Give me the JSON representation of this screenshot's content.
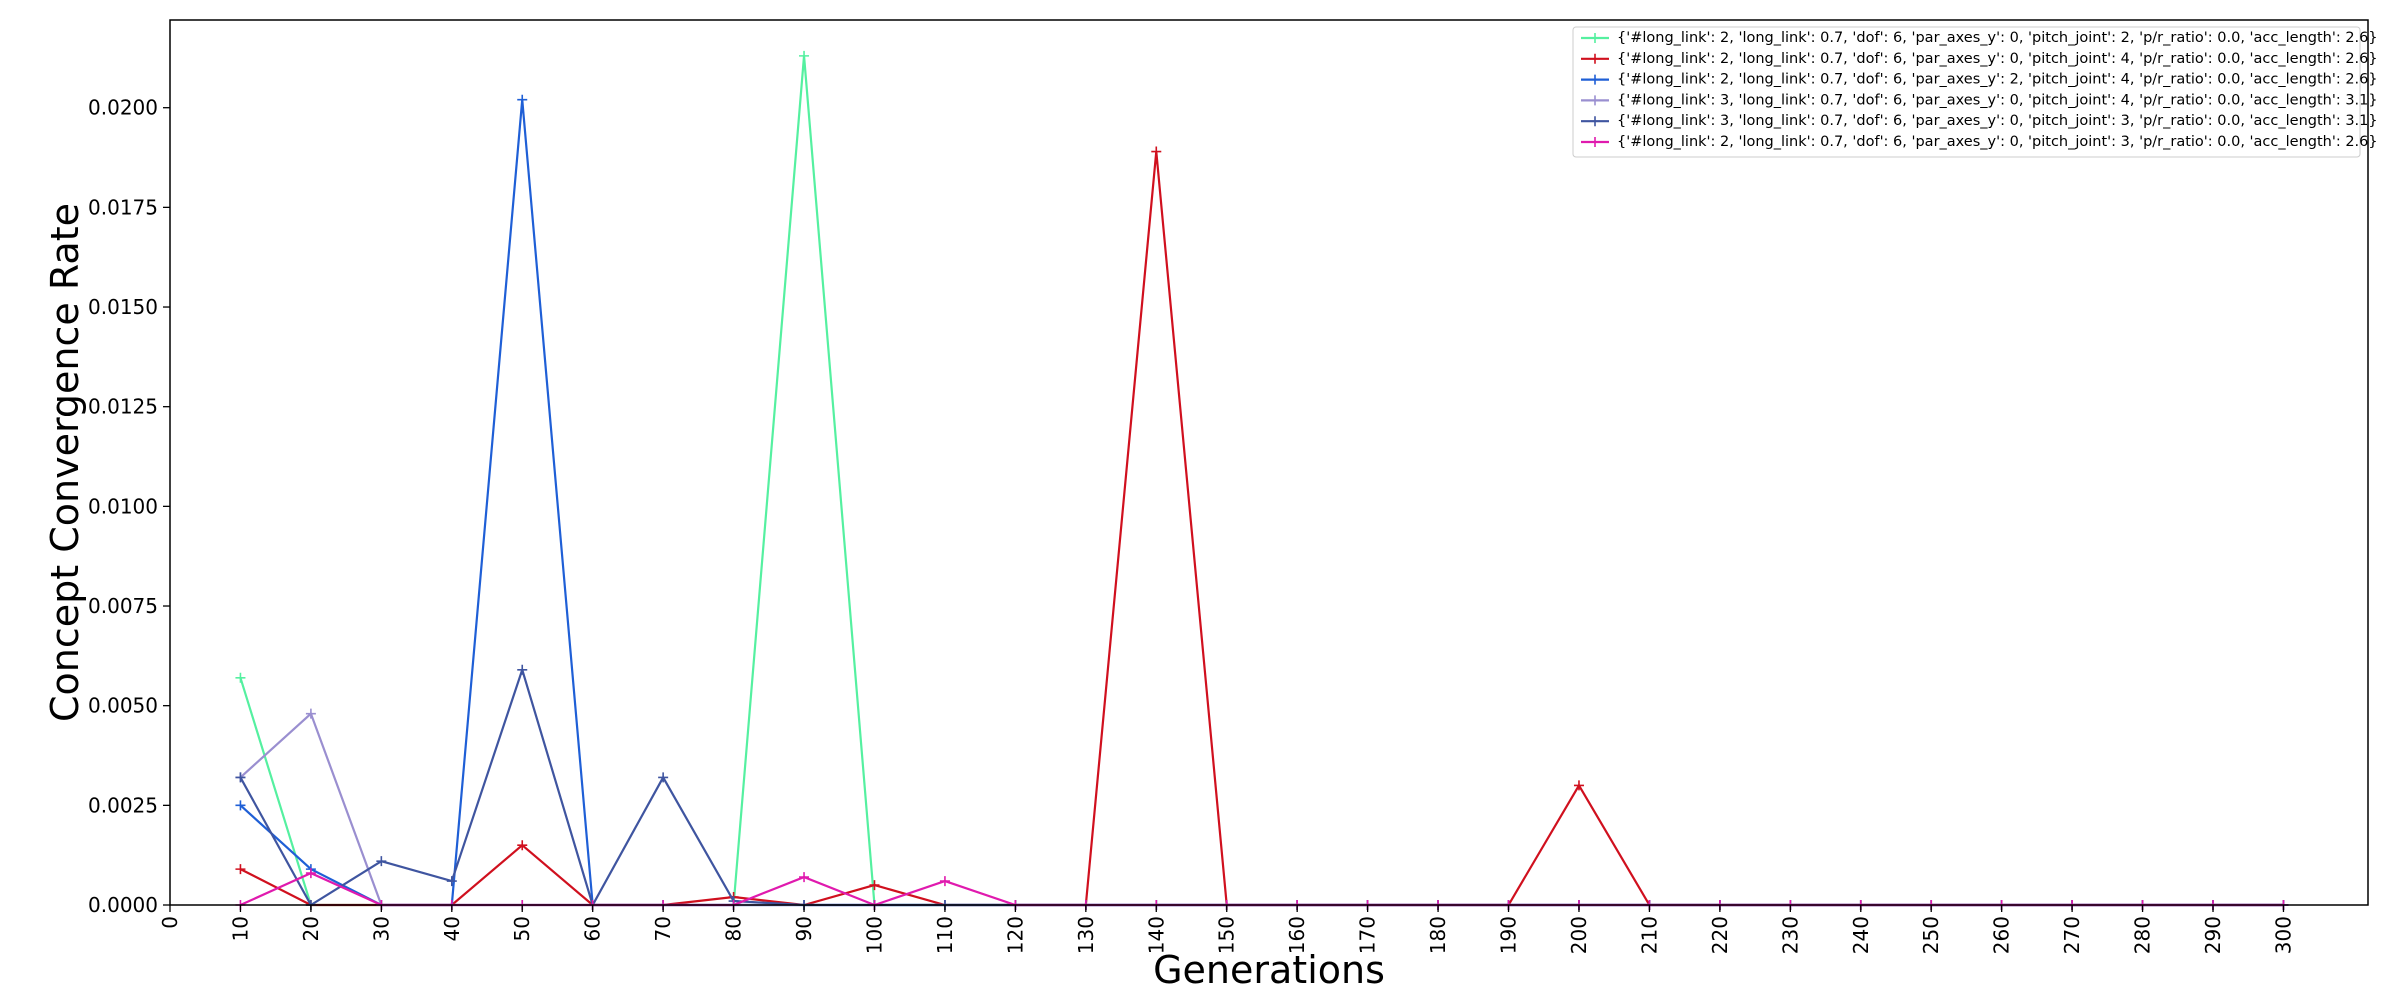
{
  "chart_data": {
    "type": "line",
    "title": "",
    "xlabel": "Generations",
    "ylabel": "Concept Convergence Rate",
    "xlim": [
      0,
      312
    ],
    "ylim": [
      0,
      0.0222
    ],
    "xticks": [
      0,
      10,
      20,
      30,
      40,
      50,
      60,
      70,
      80,
      90,
      100,
      110,
      120,
      130,
      140,
      150,
      160,
      170,
      180,
      190,
      200,
      210,
      220,
      230,
      240,
      250,
      260,
      270,
      280,
      290,
      300
    ],
    "yticks": [
      0.0,
      0.0025,
      0.005,
      0.0075,
      0.01,
      0.0125,
      0.015,
      0.0175,
      0.02
    ],
    "ytick_labels": [
      "0.0000",
      "0.0025",
      "0.0050",
      "0.0075",
      "0.0100",
      "0.0125",
      "0.0150",
      "0.0175",
      "0.0200"
    ],
    "grid": false,
    "legend_position": "top-right",
    "series": [
      {
        "name": "{'#long_link': 2, 'long_link': 0.7, 'dof': 6, 'par_axes_y': 0, 'pitch_joint': 2, 'p/r_ratio': 0.0, 'acc_length': 2.6}",
        "color": "#55f0a0",
        "x": [
          10,
          20,
          30,
          40,
          50,
          60,
          70,
          80,
          90,
          100,
          110,
          120,
          130,
          140,
          150,
          160,
          170,
          180,
          190,
          200,
          210,
          220,
          230,
          240,
          250,
          260,
          270,
          280,
          290,
          300
        ],
        "y": [
          0.0057,
          0.0,
          0.0,
          0.0,
          0.0,
          0.0,
          0.0,
          0.0,
          0.0213,
          0.0,
          0.0,
          0.0,
          0.0,
          0.0,
          0.0,
          0.0,
          0.0,
          0.0,
          0.0,
          0.0,
          0.0,
          0.0,
          0.0,
          0.0,
          0.0,
          0.0,
          0.0,
          0.0,
          0.0,
          0.0
        ]
      },
      {
        "name": "{'#long_link': 2, 'long_link': 0.7, 'dof': 6, 'par_axes_y': 0, 'pitch_joint': 4, 'p/r_ratio': 0.0, 'acc_length': 2.6}",
        "color": "#d0101e",
        "x": [
          10,
          20,
          30,
          40,
          50,
          60,
          70,
          80,
          90,
          100,
          110,
          120,
          130,
          140,
          150,
          160,
          170,
          180,
          190,
          200,
          210,
          220,
          230,
          240,
          250,
          260,
          270,
          280,
          290,
          300
        ],
        "y": [
          0.0009,
          0.0,
          0.0,
          0.0,
          0.0015,
          0.0,
          0.0,
          0.0002,
          0.0,
          0.0005,
          0.0,
          0.0,
          0.0,
          0.0189,
          0.0,
          0.0,
          0.0,
          0.0,
          0.0,
          0.003,
          0.0,
          0.0,
          0.0,
          0.0,
          0.0,
          0.0,
          0.0,
          0.0,
          0.0,
          0.0
        ]
      },
      {
        "name": "{'#long_link': 2, 'long_link': 0.7, 'dof': 6, 'par_axes_y': 2, 'pitch_joint': 4, 'p/r_ratio': 0.0, 'acc_length': 2.6}",
        "color": "#1f5fd6",
        "x": [
          10,
          20,
          30,
          40,
          50,
          60,
          70,
          80,
          90,
          100,
          110,
          120,
          130,
          140,
          150,
          160,
          170,
          180,
          190,
          200,
          210,
          220,
          230,
          240,
          250,
          260,
          270,
          280,
          290,
          300
        ],
        "y": [
          0.0025,
          0.0009,
          0.0,
          0.0,
          0.0202,
          0.0,
          0.0,
          0.0,
          0.0,
          0.0,
          0.0,
          0.0,
          0.0,
          0.0,
          0.0,
          0.0,
          0.0,
          0.0,
          0.0,
          0.0,
          0.0,
          0.0,
          0.0,
          0.0,
          0.0,
          0.0,
          0.0,
          0.0,
          0.0,
          0.0
        ]
      },
      {
        "name": "{'#long_link': 3, 'long_link': 0.7, 'dof': 6, 'par_axes_y': 0, 'pitch_joint': 4, 'p/r_ratio': 0.0, 'acc_length': 3.1}",
        "color": "#9a8fd0",
        "x": [
          10,
          20,
          30,
          40,
          50,
          60,
          70,
          80,
          90,
          100,
          110,
          120,
          130,
          140,
          150,
          160,
          170,
          180,
          190,
          200,
          210,
          220,
          230,
          240,
          250,
          260,
          270,
          280,
          290,
          300
        ],
        "y": [
          0.0032,
          0.0048,
          0.0,
          0.0,
          0.0,
          0.0,
          0.0,
          0.0,
          0.0,
          0.0,
          0.0,
          0.0,
          0.0,
          0.0,
          0.0,
          0.0,
          0.0,
          0.0,
          0.0,
          0.0,
          0.0,
          0.0,
          0.0,
          0.0,
          0.0,
          0.0,
          0.0,
          0.0,
          0.0,
          0.0
        ]
      },
      {
        "name": "{'#long_link': 3, 'long_link': 0.7, 'dof': 6, 'par_axes_y': 0, 'pitch_joint': 3, 'p/r_ratio': 0.0, 'acc_length': 3.1}",
        "color": "#3f55a0",
        "x": [
          10,
          20,
          30,
          40,
          50,
          60,
          70,
          80,
          90,
          100,
          110,
          120,
          130,
          140,
          150,
          160,
          170,
          180,
          190,
          200,
          210,
          220,
          230,
          240,
          250,
          260,
          270,
          280,
          290,
          300
        ],
        "y": [
          0.0032,
          0.0,
          0.0011,
          0.0006,
          0.0059,
          0.0,
          0.0032,
          0.0001,
          0.0,
          0.0,
          0.0,
          0.0,
          0.0,
          0.0,
          0.0,
          0.0,
          0.0,
          0.0,
          0.0,
          0.0,
          0.0,
          0.0,
          0.0,
          0.0,
          0.0,
          0.0,
          0.0,
          0.0,
          0.0,
          0.0
        ]
      },
      {
        "name": "{'#long_link': 2, 'long_link': 0.7, 'dof': 6, 'par_axes_y': 0, 'pitch_joint': 3, 'p/r_ratio': 0.0, 'acc_length': 2.6}",
        "color": "#e01aae",
        "x": [
          10,
          20,
          30,
          40,
          50,
          60,
          70,
          80,
          90,
          100,
          110,
          120,
          130,
          140,
          150,
          160,
          170,
          180,
          190,
          200,
          210,
          220,
          230,
          240,
          250,
          260,
          270,
          280,
          290,
          300
        ],
        "y": [
          0.0,
          0.0008,
          0.0,
          0.0,
          0.0,
          0.0,
          0.0,
          0.0,
          0.0007,
          0.0,
          0.0006,
          0.0,
          0.0,
          0.0,
          0.0,
          0.0,
          0.0,
          0.0,
          0.0,
          0.0,
          0.0,
          0.0,
          0.0,
          0.0,
          0.0,
          0.0,
          0.0,
          0.0,
          0.0,
          0.0
        ]
      }
    ]
  }
}
